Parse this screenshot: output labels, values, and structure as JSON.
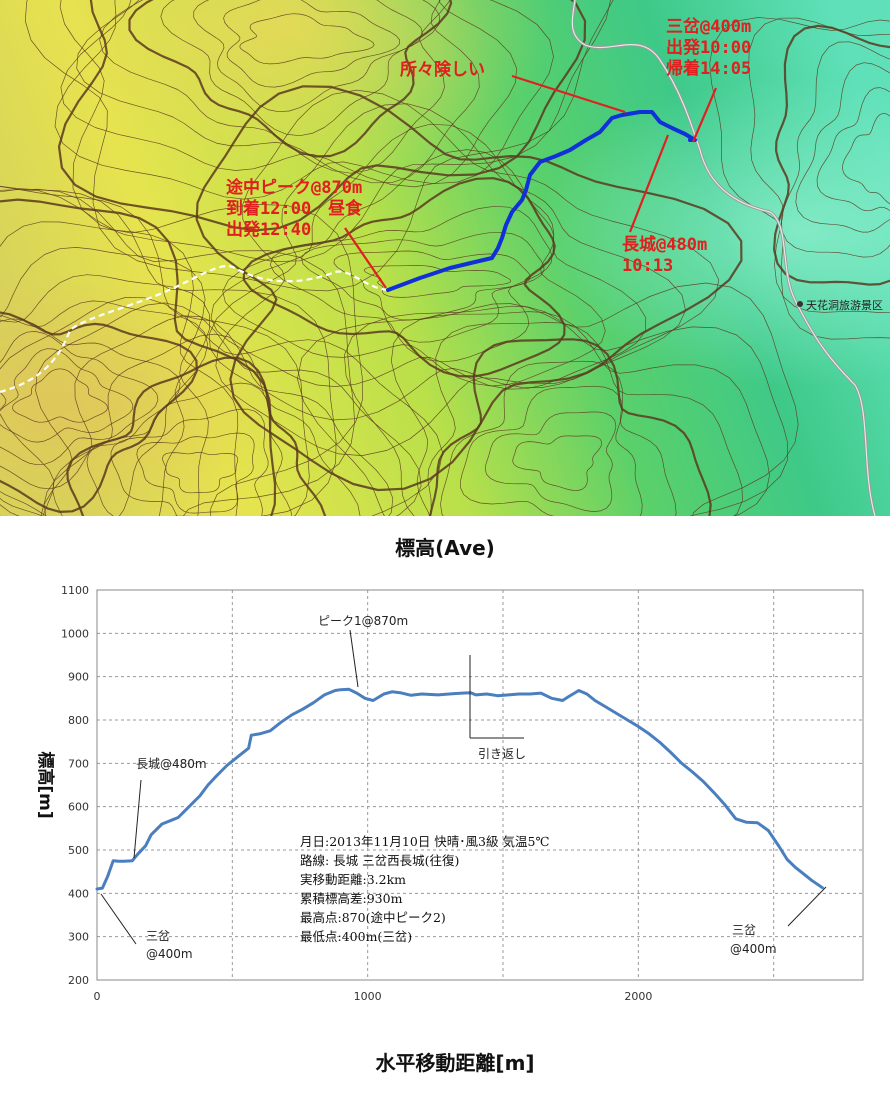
{
  "map": {
    "labels": {
      "sanchi": [
        "三岔@400m",
        "出発10:00",
        "帰着14:05"
      ],
      "steep": "所々険しい",
      "peak": [
        "途中ピーク@870m",
        "到着12:00　昼食",
        "出発12:40"
      ],
      "changcheng": [
        "長城@480m",
        "10:13"
      ],
      "tianhua": "天花洞旅游景区"
    },
    "colors": {
      "route": "#1030d8",
      "label": "#e0201e",
      "contour": "#5b3a1e",
      "road": "#9a9a9a",
      "trail": "#ffffff"
    }
  },
  "chart_title": "標高(Ave)",
  "chart_data": {
    "type": "line",
    "xlabel": "水平移動距離[m]",
    "ylabel": "標高[m]",
    "xlim": [
      0,
      2830
    ],
    "ylim": [
      200,
      1100
    ],
    "x_ticks": [
      0,
      1000,
      2000
    ],
    "y_ticks": [
      200,
      300,
      400,
      500,
      600,
      700,
      800,
      900,
      1000,
      1100
    ],
    "grid": true,
    "color": "#4a7fbf",
    "series": [
      {
        "x": [
          0,
          20,
          40,
          60,
          80,
          100,
          130,
          150,
          180,
          200,
          240,
          280,
          300,
          340,
          380,
          410,
          440,
          480,
          520,
          560,
          570,
          600,
          640,
          680,
          720,
          760,
          800,
          840,
          880,
          900,
          930,
          960,
          990,
          1020,
          1060,
          1090,
          1120,
          1160,
          1200,
          1260,
          1320,
          1350,
          1380,
          1400,
          1440,
          1480,
          1520,
          1560,
          1600,
          1640,
          1680,
          1720,
          1740,
          1780,
          1810,
          1840,
          1880,
          1920,
          1960,
          2000,
          2040,
          2080,
          2120,
          2160,
          2200,
          2240,
          2280,
          2320,
          2360,
          2400,
          2440,
          2480,
          2520,
          2550,
          2580,
          2610,
          2640,
          2680
        ],
        "y": [
          410,
          412,
          440,
          475,
          474,
          474,
          475,
          490,
          510,
          535,
          560,
          570,
          575,
          600,
          625,
          650,
          670,
          695,
          715,
          735,
          765,
          768,
          775,
          795,
          812,
          825,
          840,
          858,
          868,
          870,
          871,
          862,
          850,
          845,
          860,
          865,
          863,
          857,
          860,
          858,
          861,
          862,
          863,
          858,
          860,
          856,
          858,
          860,
          860,
          862,
          850,
          845,
          853,
          868,
          860,
          845,
          830,
          815,
          800,
          785,
          768,
          748,
          725,
          700,
          680,
          658,
          632,
          604,
          572,
          564,
          563,
          545,
          508,
          478,
          460,
          445,
          430,
          413
        ]
      }
    ],
    "annotations": {
      "peak1": "ピーク1@870m",
      "turnaround": "引き返し",
      "changcheng": "長城@480m",
      "start_name": "三岔",
      "start_elev": "@400m",
      "end_name": "三岔",
      "end_elev": "@400m"
    },
    "info": [
      "月日:2013年11月10日 快晴･風3級 気温5℃",
      "路線: 長城 三岔西長城(往復)",
      "実移動距離:3.2km",
      "累積標高差:930m",
      "最高点:870(途中ピーク2)",
      "最低点:400m(三岔)"
    ]
  }
}
